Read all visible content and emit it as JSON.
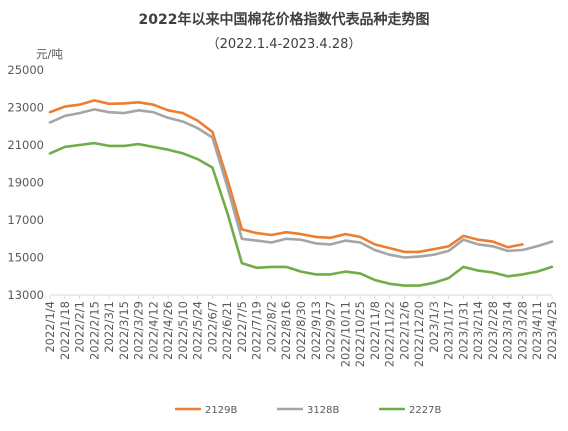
{
  "chart_data": {
    "type": "line",
    "title": "2022年以来中国棉花价格指数代表品种走势图",
    "subtitle": "（2022.1.4-2023.4.28）",
    "ylabel": "元/吨",
    "xlabel": "",
    "ylim": [
      13000,
      25000
    ],
    "yticks": [
      13000,
      15000,
      17000,
      19000,
      21000,
      23000,
      25000
    ],
    "grid": false,
    "legend_position": "bottom",
    "x_categories": [
      "2022/1/4",
      "2022/1/18",
      "2022/2/1",
      "2022/2/15",
      "2022/3/1",
      "2022/3/15",
      "2022/3/29",
      "2022/4/12",
      "2022/4/26",
      "2022/5/10",
      "2022/5/24",
      "2022/6/7",
      "2022/6/21",
      "2022/7/5",
      "2022/7/19",
      "2022/8/2",
      "2022/8/16",
      "2022/8/30",
      "2022/9/13",
      "2022/9/27",
      "2022/10/11",
      "2022/10/25",
      "2022/11/8",
      "2022/11/22",
      "2022/12/6",
      "2022/12/20",
      "2023/1/3",
      "2023/1/17",
      "2023/1/31",
      "2023/2/14",
      "2023/2/28",
      "2023/3/14",
      "2023/3/28",
      "2023/4/11",
      "2023/4/25"
    ],
    "series": [
      {
        "name": "2129B",
        "color": "#ED7D31",
        "values": [
          22750,
          23050,
          23150,
          23380,
          23200,
          23220,
          23280,
          23150,
          22850,
          22700,
          22300,
          21700,
          19200,
          16500,
          16300,
          16200,
          16350,
          16250,
          16100,
          16050,
          16250,
          16100,
          15700,
          15500,
          15300,
          15300,
          15450,
          15600,
          16150,
          15950,
          15850,
          15550,
          15700,
          null,
          null
        ]
      },
      {
        "name": "3128B",
        "color": "#A5A5A5",
        "values": [
          22200,
          22550,
          22700,
          22900,
          22750,
          22700,
          22850,
          22750,
          22450,
          22250,
          21900,
          21400,
          18800,
          16000,
          15900,
          15800,
          16000,
          15950,
          15750,
          15700,
          15900,
          15800,
          15400,
          15150,
          15000,
          15050,
          15150,
          15350,
          15950,
          15700,
          15600,
          15350,
          15400,
          15600,
          15850
        ]
      },
      {
        "name": "2227B",
        "color": "#70AD47",
        "values": [
          20550,
          20900,
          21000,
          21100,
          20950,
          20950,
          21050,
          20900,
          20750,
          20550,
          20250,
          19800,
          17400,
          14700,
          14450,
          14500,
          14500,
          14250,
          14100,
          14100,
          14250,
          14150,
          13800,
          13600,
          13500,
          13500,
          13650,
          13900,
          14500,
          14300,
          14200,
          14000,
          14100,
          14250,
          14500
        ]
      }
    ]
  }
}
